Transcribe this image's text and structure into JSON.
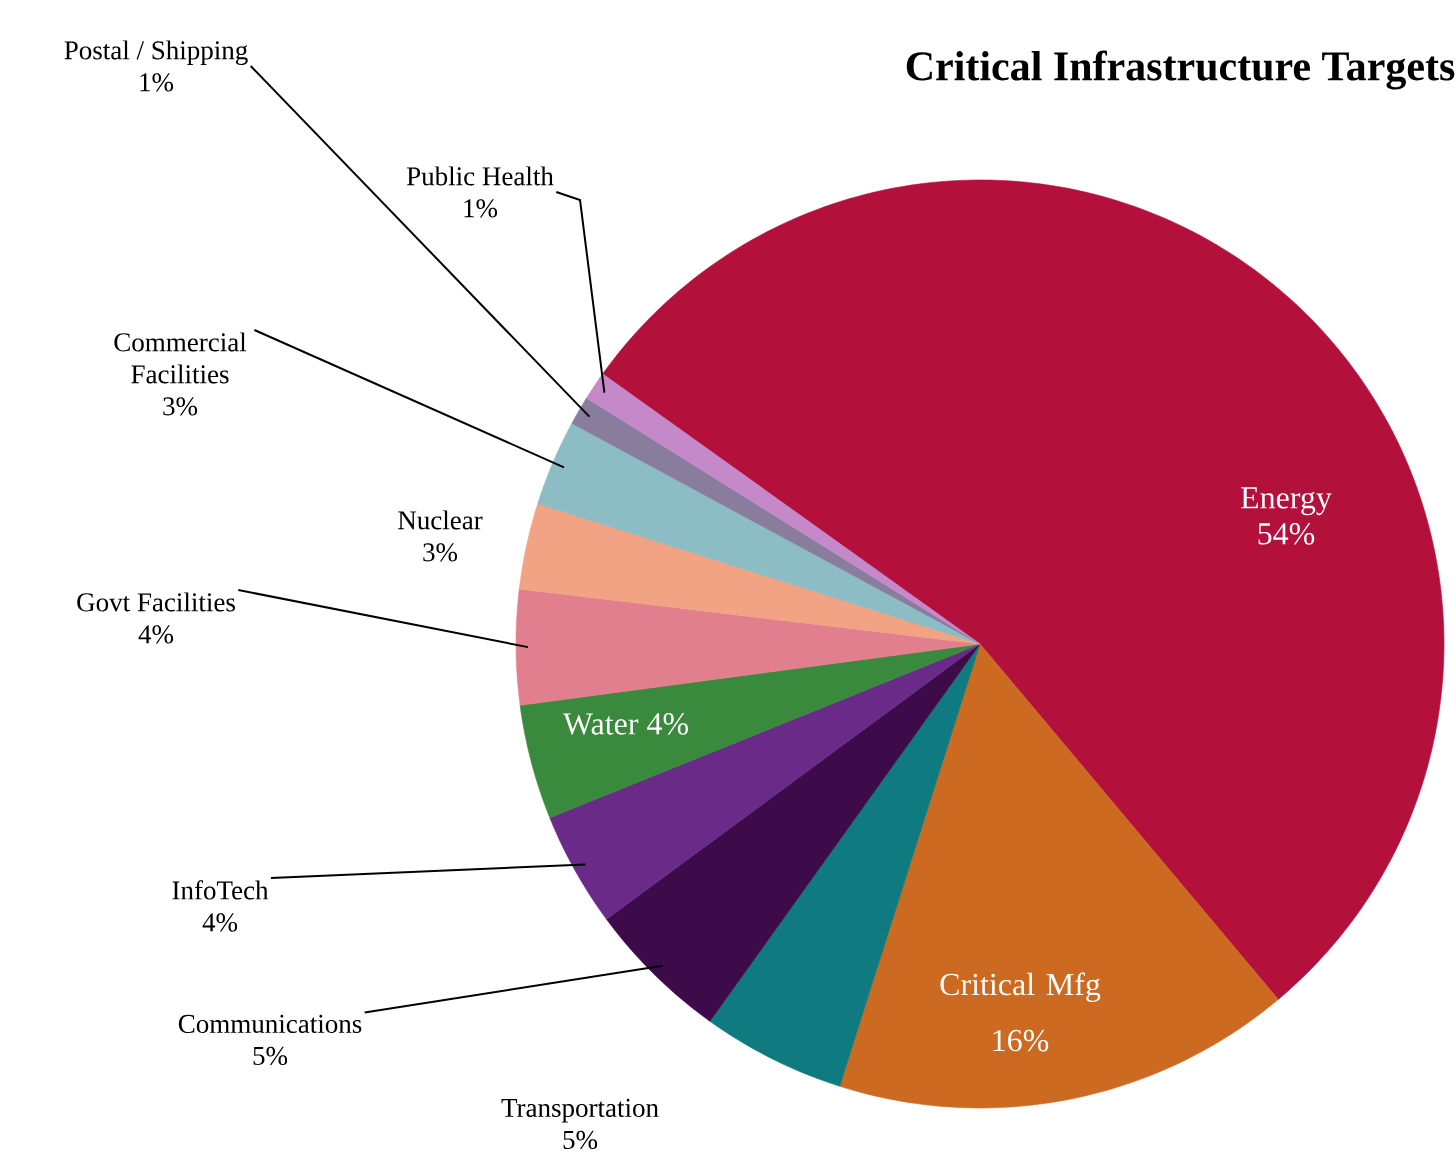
{
  "chart_data": {
    "type": "pie",
    "title": "Critical Infrastructure Targets",
    "categories": [
      "Energy",
      "Critical Mfg",
      "Transportation",
      "Communications",
      "InfoTech",
      "Water",
      "Govt Facilities",
      "Nuclear",
      "Commercial Facilities",
      "Postal / Shipping",
      "Public Health"
    ],
    "values": [
      54,
      16,
      5,
      5,
      4,
      4,
      4,
      3,
      3,
      1,
      1
    ],
    "value_labels": [
      "54%",
      "16%",
      "5%",
      "5%",
      "4%",
      "4%",
      "4%",
      "3%",
      "3%",
      "1%",
      "1%"
    ],
    "colors": [
      "#b3103c",
      "#cc6a22",
      "#0f7a80",
      "#3d0b4a",
      "#6a2a88",
      "#3a8a3e",
      "#e27f8e",
      "#f2a384",
      "#8cbcc4",
      "#8a7c9c",
      "#c588c8"
    ]
  }
}
